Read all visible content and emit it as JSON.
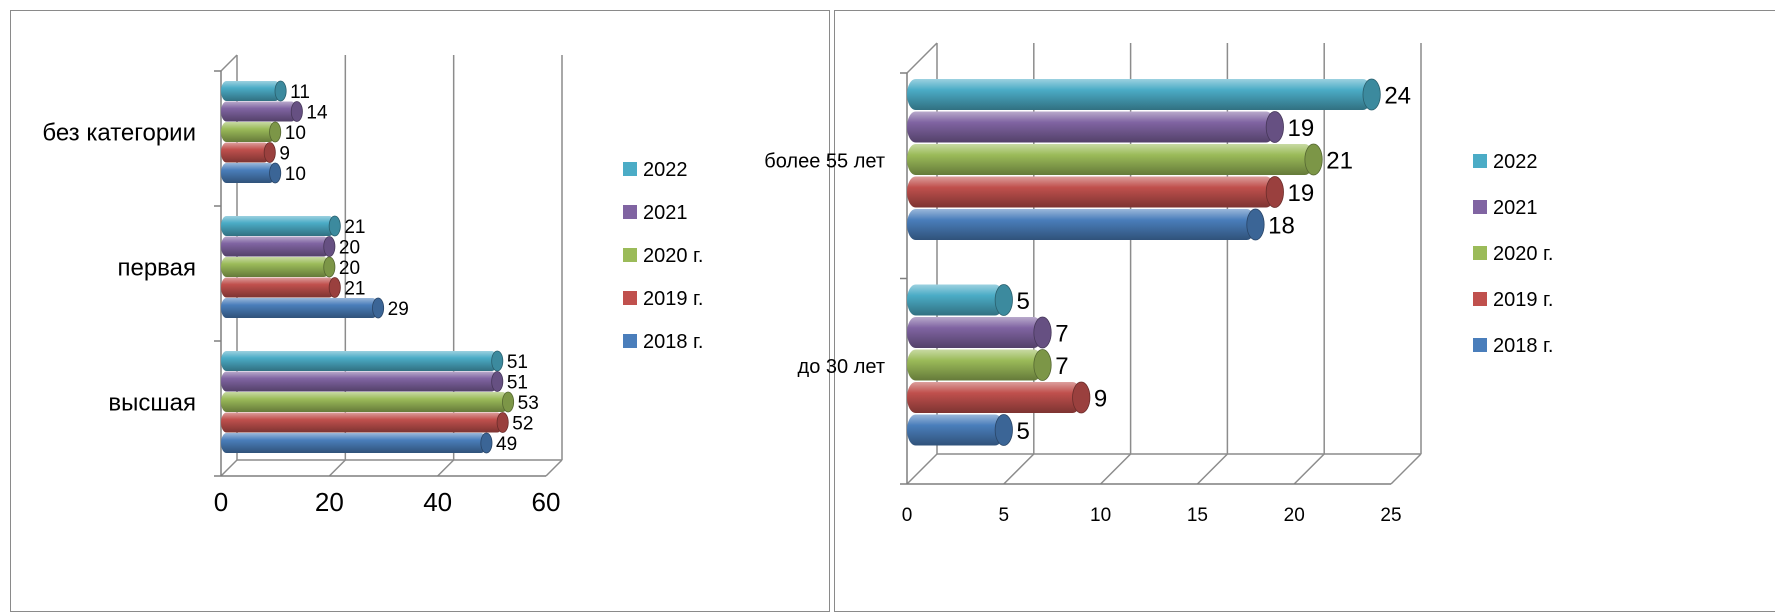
{
  "chart_data": [
    {
      "type": "bar",
      "orientation": "horizontal",
      "categories": [
        "высшая",
        "первая",
        "без категории"
      ],
      "series": [
        {
          "name": "2018 г.",
          "color": "#4a7ebb",
          "values": [
            49,
            29,
            10
          ]
        },
        {
          "name": "2019 г.",
          "color": "#c0504d",
          "values": [
            52,
            21,
            9
          ]
        },
        {
          "name": "2020 г.",
          "color": "#9bbb59",
          "values": [
            53,
            20,
            10
          ]
        },
        {
          "name": "2021",
          "color": "#8064a2",
          "values": [
            51,
            20,
            14
          ]
        },
        {
          "name": "2022",
          "color": "#4bacc6",
          "values": [
            51,
            21,
            11
          ]
        }
      ],
      "xlim": [
        0,
        60
      ],
      "xticks": [
        "0",
        "20",
        "40",
        "60"
      ],
      "title": "",
      "xlabel": "",
      "ylabel": "",
      "grid": true,
      "legend": "right"
    },
    {
      "type": "bar",
      "orientation": "horizontal",
      "categories": [
        "до 30 лет",
        "более 55 лет"
      ],
      "series": [
        {
          "name": "2018 г.",
          "color": "#4a7ebb",
          "values": [
            5,
            18
          ]
        },
        {
          "name": "2019 г.",
          "color": "#c0504d",
          "values": [
            9,
            19
          ]
        },
        {
          "name": "2020 г.",
          "color": "#9bbb59",
          "values": [
            7,
            21
          ]
        },
        {
          "name": "2021",
          "color": "#8064a2",
          "values": [
            7,
            19
          ]
        },
        {
          "name": "2022",
          "color": "#4bacc6",
          "values": [
            5,
            24
          ]
        }
      ],
      "xlim": [
        0,
        25
      ],
      "xticks": [
        "0",
        "5",
        "10",
        "15",
        "20",
        "25"
      ],
      "title": "",
      "xlabel": "",
      "ylabel": "",
      "grid": true,
      "legend": "right"
    }
  ]
}
